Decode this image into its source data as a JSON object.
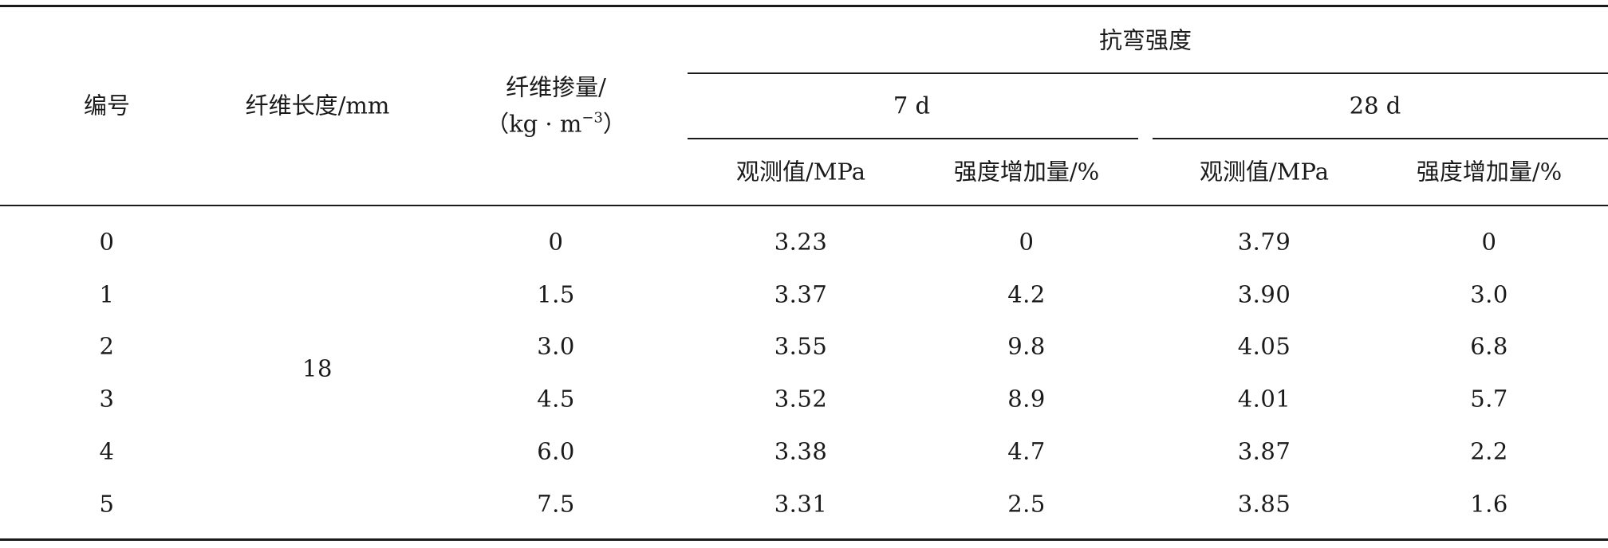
{
  "table": {
    "headers": {
      "id": "编号",
      "fiber_length": "纤维长度/mm",
      "fiber_dosage_line1": "纤维掺量/",
      "fiber_dosage_unit_open": "（kg · m",
      "fiber_dosage_unit_exp": "−3",
      "fiber_dosage_unit_close": "）",
      "flexural_strength": "抗弯强度",
      "age_7d": "7 d",
      "age_28d": "28 d",
      "observed_7d": "观测值/MPa",
      "increase_7d": "强度增加量/%",
      "observed_28d": "观测值/MPa",
      "increase_28d": "强度增加量/%"
    },
    "fiber_length_value": "18",
    "rows": [
      {
        "id": "0",
        "dosage": "0",
        "obs7": "3.23",
        "inc7": "0",
        "obs28": "3.79",
        "inc28": "0"
      },
      {
        "id": "1",
        "dosage": "1.5",
        "obs7": "3.37",
        "inc7": "4.2",
        "obs28": "3.90",
        "inc28": "3.0"
      },
      {
        "id": "2",
        "dosage": "3.0",
        "obs7": "3.55",
        "inc7": "9.8",
        "obs28": "4.05",
        "inc28": "6.8"
      },
      {
        "id": "3",
        "dosage": "4.5",
        "obs7": "3.52",
        "inc7": "8.9",
        "obs28": "4.01",
        "inc28": "5.7"
      },
      {
        "id": "4",
        "dosage": "6.0",
        "obs7": "3.38",
        "inc7": "4.7",
        "obs28": "3.87",
        "inc28": "2.2"
      },
      {
        "id": "5",
        "dosage": "7.5",
        "obs7": "3.31",
        "inc7": "2.5",
        "obs28": "3.85",
        "inc28": "1.6"
      }
    ]
  }
}
